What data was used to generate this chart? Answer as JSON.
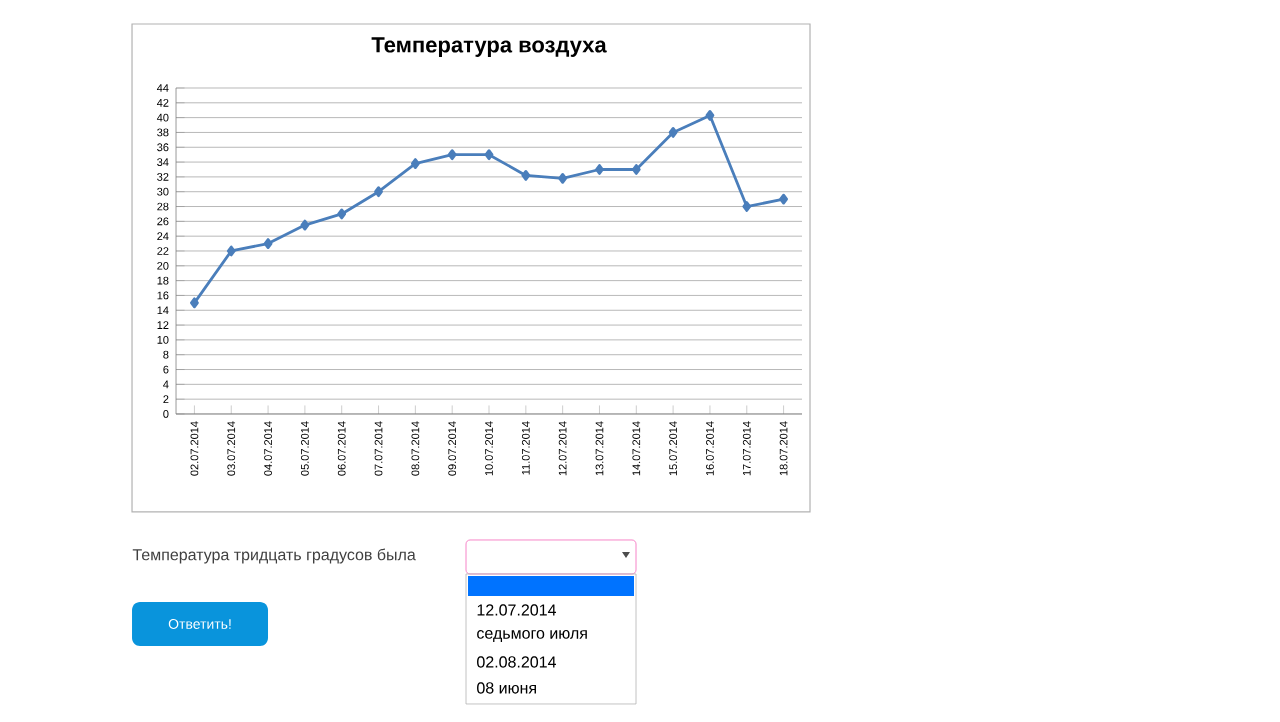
{
  "chart_data": {
    "type": "line",
    "title": "Температура воздуха",
    "categories": [
      "02.07.2014",
      "03.07.2014",
      "04.07.2014",
      "05.07.2014",
      "06.07.2014",
      "07.07.2014",
      "08.07.2014",
      "09.07.2014",
      "10.07.2014",
      "11.07.2014",
      "12.07.2014",
      "13.07.2014",
      "14.07.2014",
      "15.07.2014",
      "16.07.2014",
      "17.07.2014",
      "18.07.2014"
    ],
    "values": [
      15,
      22,
      23,
      25.5,
      27,
      30,
      33.8,
      35,
      35,
      32.2,
      31.8,
      33,
      33,
      38,
      40.3,
      28,
      29
    ],
    "color": "#4a7ebb",
    "marker": "diamond",
    "line_style": "solid",
    "ylim": [
      0,
      44
    ],
    "yticks": [
      0,
      2,
      4,
      6,
      8,
      10,
      12,
      14,
      16,
      18,
      20,
      22,
      24,
      26,
      28,
      30,
      32,
      34,
      36,
      38,
      40,
      42,
      44
    ],
    "grid": "y",
    "annotations": [
      "Температура тридцать градусов была",
      "12.07.2014",
      "седьмого июля",
      "02.08.2014",
      "08 июня",
      "Ответить!"
    ]
  }
}
